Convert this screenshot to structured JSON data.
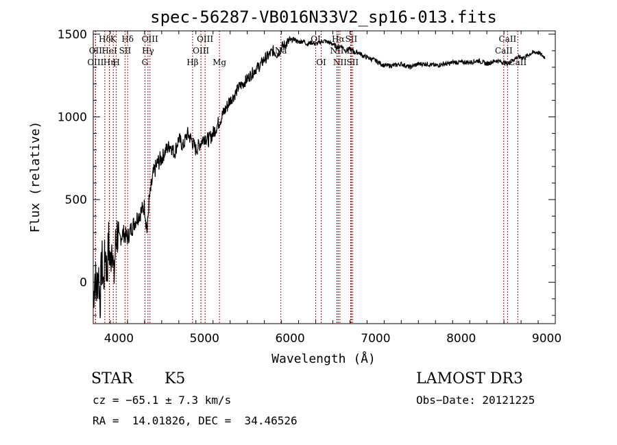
{
  "chart_data": {
    "type": "line",
    "title": "spec-56287-VB016N33V2_sp16-013.fits",
    "xlabel": "Wavelength (Å)",
    "ylabel": "Flux (relative)",
    "xlim": [
      3700,
      9100
    ],
    "ylim": [
      -250,
      1520
    ],
    "xticks": [
      4000,
      5000,
      6000,
      7000,
      8000,
      9000
    ],
    "yticks": [
      0,
      500,
      1000,
      1500
    ],
    "grid": false,
    "series": [
      {
        "x": [
          3700,
          3720,
          3740,
          3760,
          3780,
          3800,
          3820,
          3840,
          3860,
          3880,
          3900,
          3920,
          3940,
          3960,
          3980,
          4000,
          4050,
          4100,
          4150,
          4200,
          4250,
          4300,
          4330,
          4350,
          4400,
          4450,
          4500,
          4550,
          4600,
          4650,
          4700,
          4750,
          4800,
          4850,
          4900,
          4950,
          5000,
          5050,
          5100,
          5150,
          5200,
          5250,
          5300,
          5350,
          5400,
          5450,
          5500,
          5550,
          5600,
          5650,
          5700,
          5750,
          5800,
          5850,
          5900,
          5950,
          6000,
          6050,
          6100,
          6150,
          6200,
          6250,
          6300,
          6350,
          6400,
          6450,
          6500,
          6550,
          6600,
          6650,
          6700,
          6750,
          6800,
          6850,
          6900,
          6950,
          7000,
          7100,
          7200,
          7300,
          7400,
          7500,
          7600,
          7700,
          7800,
          7850,
          7900,
          8000,
          8100,
          8200,
          8300,
          8400,
          8500,
          8540,
          8600,
          8650,
          8700,
          8750,
          8800,
          8850,
          8900,
          8950,
          8980
        ],
        "values": [
          -100,
          50,
          -50,
          80,
          -120,
          150,
          -20,
          200,
          50,
          250,
          100,
          280,
          0,
          220,
          300,
          250,
          300,
          270,
          330,
          380,
          420,
          460,
          300,
          480,
          650,
          720,
          750,
          800,
          830,
          780,
          870,
          820,
          900,
          860,
          800,
          840,
          880,
          860,
          900,
          950,
          1000,
          1050,
          1100,
          1130,
          1180,
          1200,
          1230,
          1260,
          1290,
          1310,
          1350,
          1370,
          1400,
          1380,
          1420,
          1440,
          1460,
          1470,
          1450,
          1460,
          1440,
          1450,
          1440,
          1450,
          1460,
          1450,
          1440,
          1420,
          1430,
          1400,
          1410,
          1390,
          1390,
          1370,
          1360,
          1350,
          1340,
          1310,
          1310,
          1320,
          1300,
          1320,
          1320,
          1310,
          1320,
          1320,
          1330,
          1330,
          1330,
          1340,
          1320,
          1340,
          1330,
          1320,
          1340,
          1360,
          1360,
          1360,
          1380,
          1390,
          1390,
          1370,
          1360
        ]
      }
    ],
    "line_markers": [
      {
        "label": "Hδ",
        "wave": 3835,
        "row": 0
      },
      {
        "label": "OII",
        "wave": 3727,
        "row": 1
      },
      {
        "label": "OIII",
        "wave": 3727,
        "row": 2
      },
      {
        "label": "K",
        "wave": 3934,
        "row": 0
      },
      {
        "label": "HeI",
        "wave": 3889,
        "row": 1
      },
      {
        "label": "Hη",
        "wave": 3889,
        "row": 2
      },
      {
        "label": "Hδ",
        "wave": 4102,
        "row": 0
      },
      {
        "label": "SII",
        "wave": 4072,
        "row": 1
      },
      {
        "label": "H",
        "wave": 3969,
        "row": 2
      },
      {
        "label": "OIII",
        "wave": 4363,
        "row": 0
      },
      {
        "label": "Hγ",
        "wave": 4340,
        "row": 1
      },
      {
        "label": "G",
        "wave": 4304,
        "row": 2
      },
      {
        "label": "Hβ",
        "wave": 4861,
        "row": 2
      },
      {
        "label": "OIII",
        "wave": 5007,
        "row": 0
      },
      {
        "label": "OIII",
        "wave": 4959,
        "row": 1
      },
      {
        "label": "Mg",
        "wave": 5175,
        "row": 2
      },
      {
        "label": "Na",
        "wave": 5893,
        "row": 1
      },
      {
        "label": "OI",
        "wave": 6300,
        "row": 0
      },
      {
        "label": "OI",
        "wave": 6364,
        "row": 2
      },
      {
        "label": "Hα",
        "wave": 6563,
        "row": 0
      },
      {
        "label": "NII",
        "wave": 6548,
        "row": 1
      },
      {
        "label": "NII",
        "wave": 6583,
        "row": 2
      },
      {
        "label": "SII",
        "wave": 6716,
        "row": 0
      },
      {
        "label": "Li",
        "wave": 6708,
        "row": 1
      },
      {
        "label": "SII",
        "wave": 6731,
        "row": 2
      },
      {
        "label": "CaII",
        "wave": 8542,
        "row": 0
      },
      {
        "label": "CaII",
        "wave": 8498,
        "row": 1
      },
      {
        "label": "CaII",
        "wave": 8662,
        "row": 2
      }
    ]
  },
  "info": {
    "object_class": "STAR",
    "subclass": "K5",
    "survey": "LAMOST DR3",
    "cz_line": "cz = −65.1 ± 7.3 km/s",
    "obs_date_line": "Obs−Date: 20121225",
    "coords_line": "RA =  14.01826, DEC =  34.46526"
  },
  "colors": {
    "line": "#000000",
    "marker": "#b00000"
  }
}
